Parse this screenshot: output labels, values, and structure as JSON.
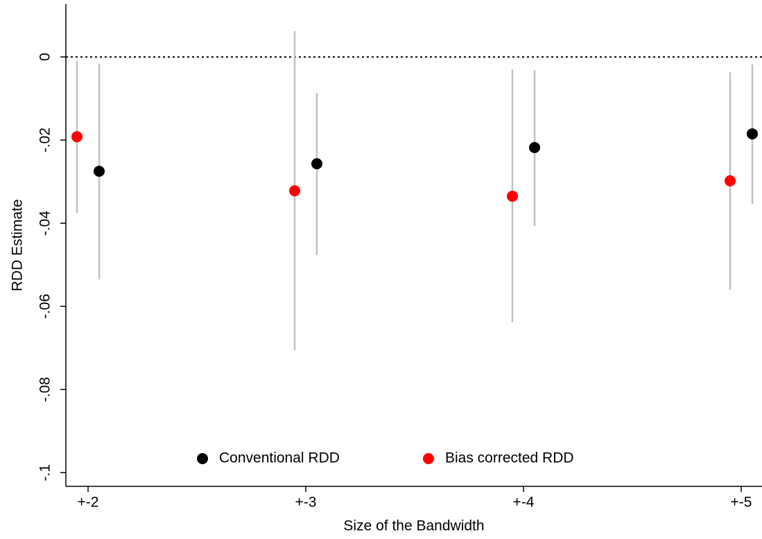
{
  "chart_data": {
    "type": "dot-errorbar",
    "x_label": "Size of the Bandwidth",
    "y_label": "RDD Estimate",
    "categories": [
      "+-2",
      "+-3",
      "+-4",
      "+-5"
    ],
    "ylim": [
      -0.1033,
      0.0127
    ],
    "yticks": [
      0,
      {
        "value": -0.02,
        "label": "-.02"
      },
      {
        "value": -0.04,
        "label": "-.04"
      },
      {
        "value": -0.06,
        "label": "-.06"
      },
      {
        "value": -0.08,
        "label": "-.08"
      },
      {
        "value": -0.1,
        "label": "-.1"
      }
    ],
    "reference_line": 0,
    "errorbar_color": "#c0c0c0",
    "legend": "bottom",
    "series": [
      {
        "name": "Conventional RDD",
        "color": "#000000",
        "values": [
          -0.0275,
          -0.0257,
          -0.0218,
          -0.0185
        ],
        "ci_low": [
          -0.0535,
          -0.0477,
          -0.0407,
          -0.0353
        ],
        "ci_high": [
          -0.0017,
          -0.0087,
          -0.0032,
          -0.0018
        ]
      },
      {
        "name": "Bias corrected RDD",
        "color": "#ff0000",
        "values": [
          -0.0192,
          -0.0322,
          -0.0335,
          -0.0298
        ],
        "ci_low": [
          -0.0375,
          -0.0705,
          -0.0638,
          -0.056
        ],
        "ci_high": [
          -0.001,
          0.0062,
          -0.003,
          -0.0037
        ]
      }
    ]
  }
}
